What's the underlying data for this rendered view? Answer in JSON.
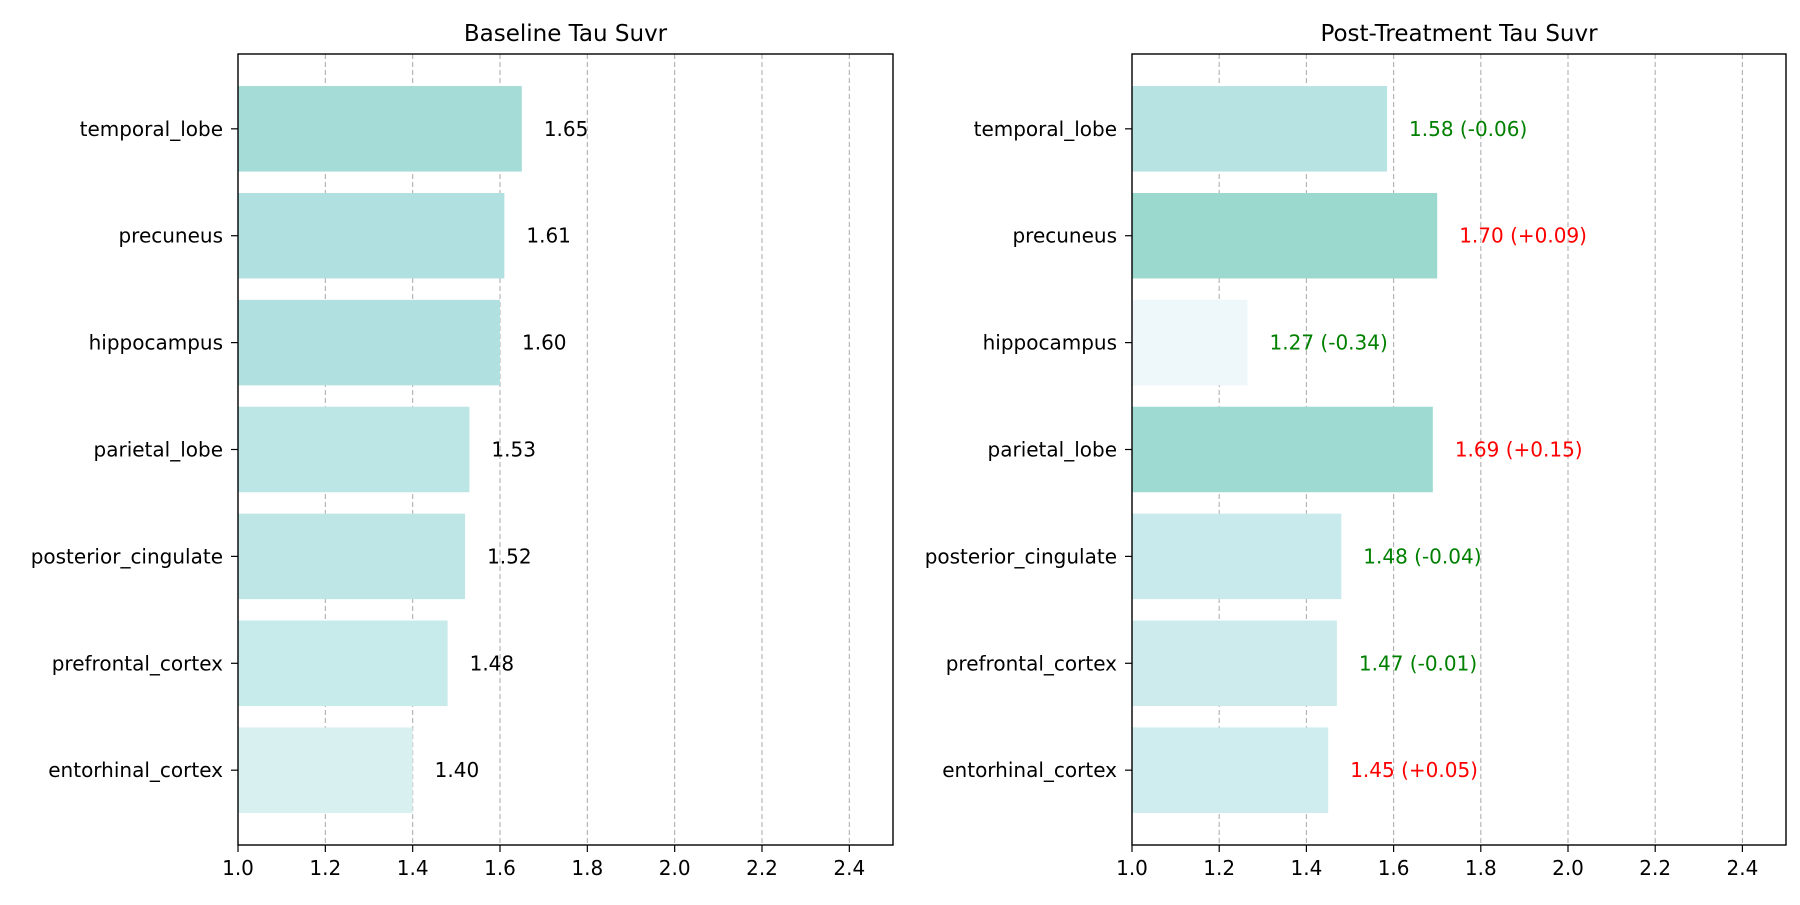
{
  "chart_data": [
    {
      "type": "bar",
      "orientation": "horizontal",
      "title": "Baseline Tau Suvr",
      "xlabel": "",
      "ylabel": "",
      "xlim": [
        1.0,
        2.5
      ],
      "xticks": [
        "1.0",
        "1.2",
        "1.4",
        "1.6",
        "1.8",
        "2.0",
        "2.2",
        "2.4"
      ],
      "grid": "x-dashed",
      "categories": [
        "temporal_lobe",
        "precuneus",
        "hippocampus",
        "parietal_lobe",
        "posterior_cingulate",
        "prefrontal_cortex",
        "entorhinal_cortex"
      ],
      "values": [
        1.65,
        1.61,
        1.6,
        1.53,
        1.52,
        1.48,
        1.4
      ],
      "labels": [
        "1.65",
        "1.61",
        "1.60",
        "1.53",
        "1.52",
        "1.48",
        "1.40"
      ],
      "label_colors": [
        "#000000",
        "#000000",
        "#000000",
        "#000000",
        "#000000",
        "#000000",
        "#000000"
      ],
      "bar_colors": [
        "#a6dcd8",
        "#b0e0df",
        "#b1e0e0",
        "#bce5e5",
        "#bfe6e6",
        "#c7eaea",
        "#d9f0f1"
      ]
    },
    {
      "type": "bar",
      "orientation": "horizontal",
      "title": "Post-Treatment Tau Suvr",
      "xlabel": "",
      "ylabel": "",
      "xlim": [
        1.0,
        2.5
      ],
      "xticks": [
        "1.0",
        "1.2",
        "1.4",
        "1.6",
        "1.8",
        "2.0",
        "2.2",
        "2.4"
      ],
      "grid": "x-dashed",
      "categories": [
        "temporal_lobe",
        "precuneus",
        "hippocampus",
        "parietal_lobe",
        "posterior_cingulate",
        "prefrontal_cortex",
        "entorhinal_cortex"
      ],
      "values": [
        1.585,
        1.7,
        1.265,
        1.69,
        1.48,
        1.47,
        1.45
      ],
      "labels": [
        "1.58 (-0.06)",
        "1.70 (+0.09)",
        "1.27 (-0.34)",
        "1.69 (+0.15)",
        "1.48 (-0.04)",
        "1.47 (-0.01)",
        "1.45 (+0.05)"
      ],
      "label_colors": [
        "#008000",
        "#ff0000",
        "#008000",
        "#ff0000",
        "#008000",
        "#008000",
        "#ff0000"
      ],
      "bar_colors": [
        "#b8e3e3",
        "#9bd8cd",
        "#eef7f9",
        "#9fdad2",
        "#c9eaec",
        "#cdebec",
        "#cfecee"
      ]
    }
  ]
}
